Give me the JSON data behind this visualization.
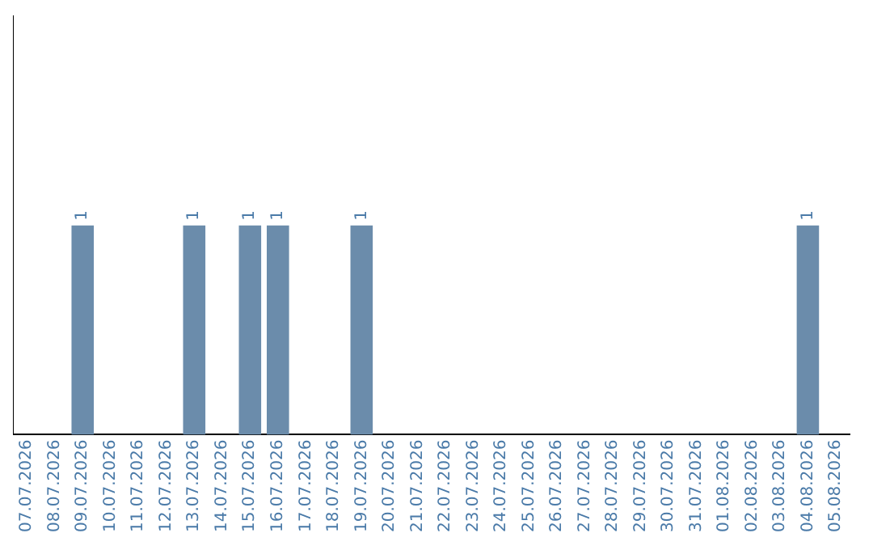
{
  "chart_data": {
    "type": "bar",
    "categories": [
      "07.07.2026",
      "08.07.2026",
      "09.07.2026",
      "10.07.2026",
      "11.07.2026",
      "12.07.2026",
      "13.07.2026",
      "14.07.2026",
      "15.07.2026",
      "16.07.2026",
      "17.07.2026",
      "18.07.2026",
      "19.07.2026",
      "20.07.2026",
      "21.07.2026",
      "22.07.2026",
      "23.07.2026",
      "24.07.2026",
      "25.07.2026",
      "26.07.2026",
      "27.07.2026",
      "28.07.2026",
      "29.07.2026",
      "30.07.2026",
      "31.07.2026",
      "01.08.2026",
      "02.08.2026",
      "03.08.2026",
      "04.08.2026",
      "05.08.2026"
    ],
    "values": [
      null,
      null,
      1,
      null,
      null,
      null,
      1,
      null,
      1,
      1,
      null,
      null,
      1,
      null,
      null,
      null,
      null,
      null,
      null,
      null,
      null,
      null,
      null,
      null,
      null,
      null,
      null,
      null,
      1,
      null
    ],
    "color": "#6b8cab",
    "ylim": [
      0,
      2
    ],
    "data_labels": true,
    "grid": false,
    "legend": false,
    "tick_labels": "x"
  }
}
